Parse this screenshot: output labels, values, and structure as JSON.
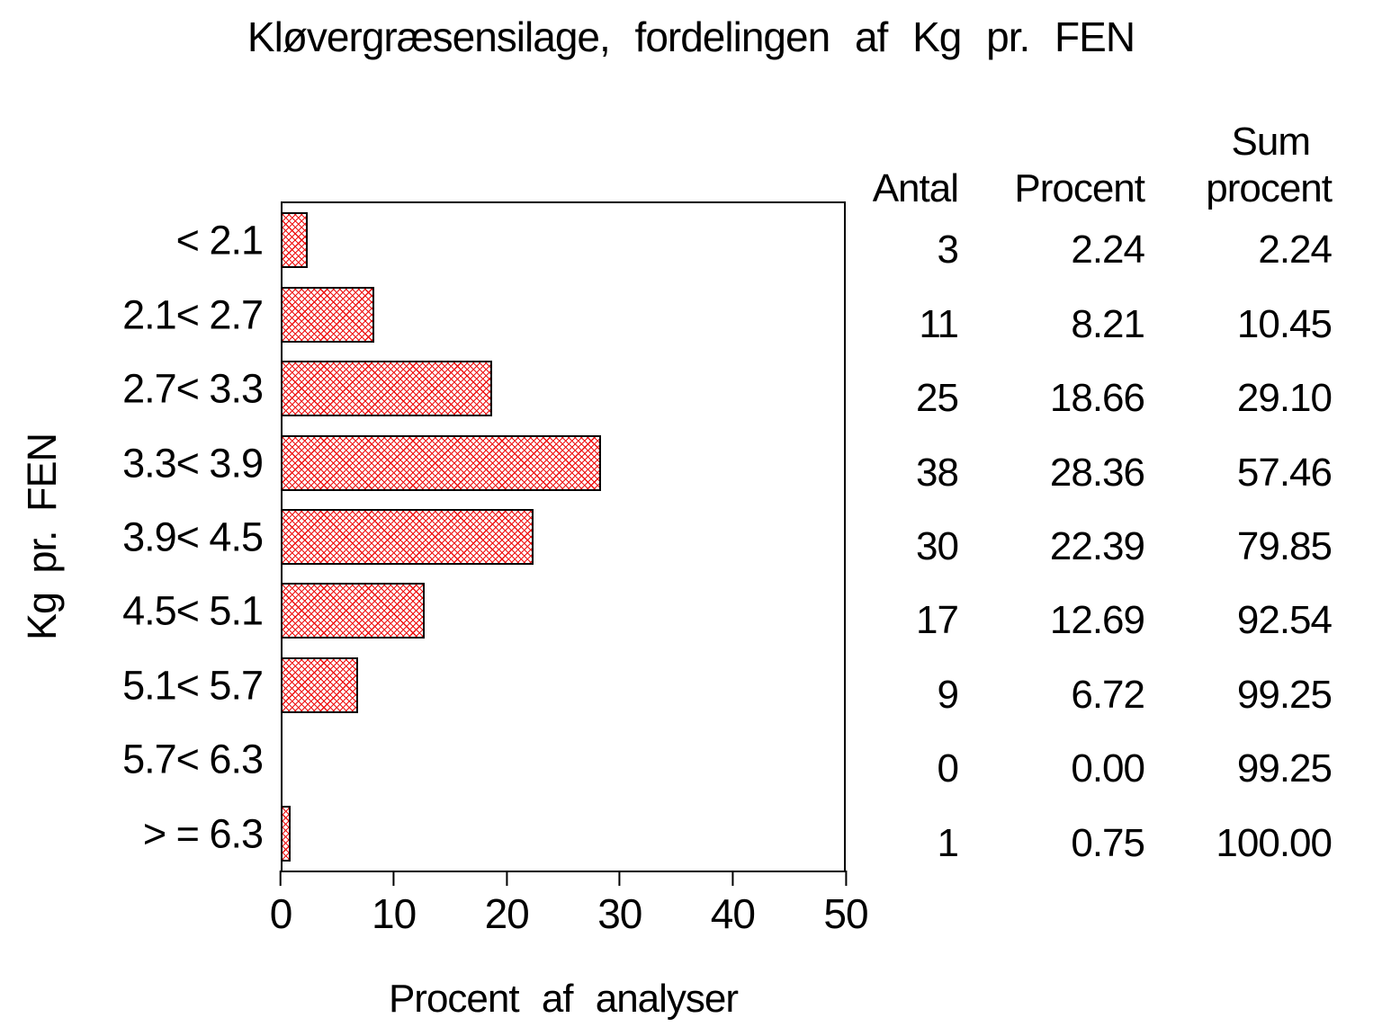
{
  "title": "Kløvergræsensilage, fordelingen af Kg pr. FEN",
  "chart_data": {
    "type": "bar",
    "orientation": "horizontal",
    "title": "Kløvergræsensilage, fordelingen af Kg pr. FEN",
    "xlabel": "Procent af analyser",
    "ylabel": "Kg pr. FEN",
    "xlim": [
      0,
      50
    ],
    "xticks": [
      0,
      10,
      20,
      30,
      40,
      50
    ],
    "grid": false,
    "legend": "none",
    "bar_fill_color": "#ffffff",
    "bar_hatch_color": "#ee0d0d",
    "bar_border_color": "#000000",
    "categories": [
      "< 2.1",
      "2.1< 2.7",
      "2.7< 3.3",
      "3.3< 3.9",
      "3.9< 4.5",
      "4.5< 5.1",
      "5.1< 5.7",
      "5.7< 6.3",
      "> = 6.3"
    ],
    "series": [
      {
        "name": "Procent",
        "values": [
          2.24,
          8.21,
          18.66,
          28.36,
          22.39,
          12.69,
          6.72,
          0.0,
          0.75
        ]
      },
      {
        "name": "Antal",
        "values": [
          3,
          11,
          25,
          38,
          30,
          17,
          9,
          0,
          1
        ]
      },
      {
        "name": "Sum procent",
        "values": [
          2.24,
          10.45,
          29.1,
          57.46,
          79.85,
          92.54,
          99.25,
          99.25,
          100.0
        ]
      }
    ]
  },
  "table": {
    "header_antal": "Antal",
    "header_procent": "Procent",
    "header_sum_top": "Sum",
    "header_sum_bottom": "procent",
    "rows": [
      [
        "3",
        "2.24",
        "2.24"
      ],
      [
        "11",
        "8.21",
        "10.45"
      ],
      [
        "25",
        "18.66",
        "29.10"
      ],
      [
        "38",
        "28.36",
        "57.46"
      ],
      [
        "30",
        "22.39",
        "79.85"
      ],
      [
        "17",
        "12.69",
        "92.54"
      ],
      [
        "9",
        "6.72",
        "99.25"
      ],
      [
        "0",
        "0.00",
        "99.25"
      ],
      [
        "1",
        "0.75",
        "100.00"
      ]
    ]
  }
}
